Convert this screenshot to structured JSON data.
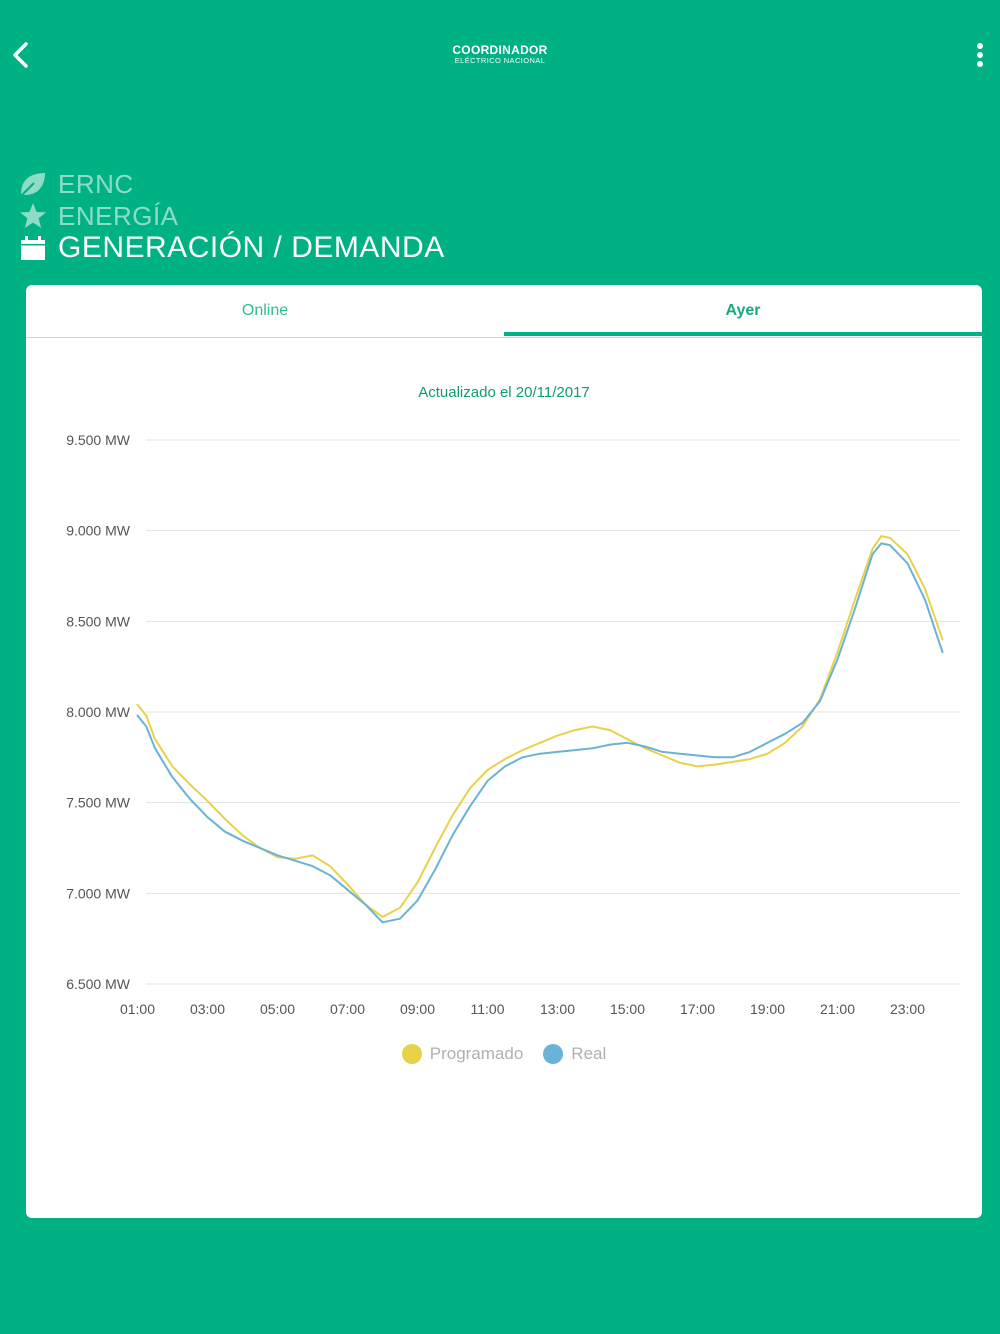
{
  "header": {
    "logo_main": "COORDINADOR",
    "logo_sub": "ELÉCTRICO NACIONAL"
  },
  "nav": {
    "items": [
      {
        "label": "ERNC",
        "icon": "leaf-icon"
      },
      {
        "label": "ENERGÍA",
        "icon": "star-icon"
      },
      {
        "label": "GENERACIÓN / DEMANDA",
        "icon": "calendar-icon"
      }
    ]
  },
  "tabs": [
    {
      "label": "Online"
    },
    {
      "label": "Ayer"
    }
  ],
  "colors": {
    "primary": "#00b184",
    "programado": "#e8d24a",
    "real": "#6ab3d8"
  },
  "chart_data": {
    "type": "line",
    "title": "Actualizado el 20/11/2017",
    "y_tick_labels": [
      "9.500 MW",
      "9.000 MW",
      "8.500 MW",
      "8.000 MW",
      "7.500 MW",
      "7.000 MW",
      "6.500 MW"
    ],
    "y_ticks": [
      9500,
      9000,
      8500,
      8000,
      7500,
      7000,
      6500
    ],
    "ylim": [
      6500,
      9500
    ],
    "x_tick_labels": [
      "01:00",
      "03:00",
      "05:00",
      "07:00",
      "09:00",
      "11:00",
      "13:00",
      "15:00",
      "17:00",
      "19:00",
      "21:00",
      "23:00"
    ],
    "x_ticks": [
      1,
      3,
      5,
      7,
      9,
      11,
      13,
      15,
      17,
      19,
      21,
      23
    ],
    "grid": true,
    "legend_position": "bottom",
    "series": [
      {
        "name": "Programado",
        "x": [
          1,
          1.25,
          1.5,
          2,
          2.5,
          3,
          3.5,
          4,
          4.5,
          5,
          5.5,
          6,
          6.5,
          7,
          7.5,
          8,
          8.5,
          9,
          9.5,
          10,
          10.5,
          11,
          11.5,
          12,
          12.5,
          13,
          13.5,
          14,
          14.5,
          15,
          15.5,
          16,
          16.5,
          17,
          17.5,
          18,
          18.5,
          19,
          19.5,
          20,
          20.5,
          21,
          21.5,
          22,
          22.25,
          22.5,
          23,
          23.5,
          24
        ],
        "values": [
          8040,
          7980,
          7850,
          7700,
          7600,
          7510,
          7410,
          7320,
          7250,
          7200,
          7190,
          7210,
          7150,
          7050,
          6940,
          6870,
          6920,
          7060,
          7250,
          7430,
          7580,
          7680,
          7740,
          7790,
          7830,
          7870,
          7900,
          7920,
          7900,
          7850,
          7800,
          7760,
          7720,
          7700,
          7710,
          7725,
          7740,
          7770,
          7830,
          7920,
          8070,
          8330,
          8620,
          8900,
          8970,
          8960,
          8870,
          8680,
          8400
        ]
      },
      {
        "name": "Real",
        "x": [
          1,
          1.25,
          1.5,
          2,
          2.5,
          3,
          3.5,
          4,
          4.5,
          5,
          5.5,
          6,
          6.5,
          7,
          7.5,
          8,
          8.5,
          9,
          9.5,
          10,
          10.5,
          11,
          11.5,
          12,
          12.5,
          13,
          13.5,
          14,
          14.5,
          15,
          15.5,
          16,
          16.5,
          17,
          17.5,
          18,
          18.5,
          19,
          19.5,
          20,
          20.5,
          21,
          21.5,
          22,
          22.25,
          22.5,
          23,
          23.5,
          24
        ],
        "values": [
          7980,
          7920,
          7800,
          7640,
          7520,
          7420,
          7340,
          7290,
          7250,
          7210,
          7180,
          7150,
          7100,
          7020,
          6940,
          6840,
          6860,
          6960,
          7130,
          7320,
          7480,
          7620,
          7700,
          7750,
          7770,
          7780,
          7790,
          7800,
          7820,
          7830,
          7810,
          7780,
          7770,
          7760,
          7750,
          7750,
          7780,
          7830,
          7880,
          7940,
          8060,
          8290,
          8570,
          8870,
          8930,
          8920,
          8820,
          8620,
          8330
        ]
      }
    ]
  }
}
